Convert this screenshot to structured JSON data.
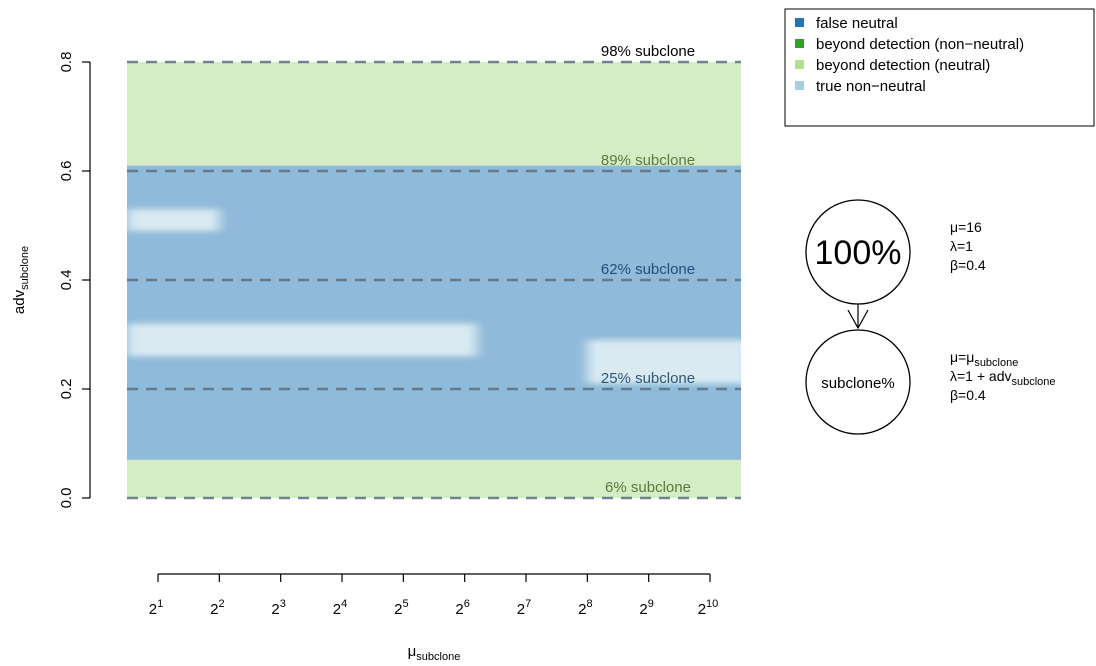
{
  "chart_data": {
    "type": "heatmap",
    "ylabel": {
      "base": "adv",
      "sub": "subclone"
    },
    "xlabel": {
      "base": "μ",
      "sub": "subclone"
    },
    "ylim": [
      0,
      0.8
    ],
    "xlim_log2": [
      1,
      10
    ],
    "y_ticks": [
      {
        "value": 0.0,
        "label": "0.0"
      },
      {
        "value": 0.2,
        "label": "0.2"
      },
      {
        "value": 0.4,
        "label": "0.4"
      },
      {
        "value": 0.6,
        "label": "0.6"
      },
      {
        "value": 0.8,
        "label": "0.8"
      }
    ],
    "x_ticks": [
      {
        "exp": 1,
        "base": "2",
        "sup": "1"
      },
      {
        "exp": 2,
        "base": "2",
        "sup": "2"
      },
      {
        "exp": 3,
        "base": "2",
        "sup": "3"
      },
      {
        "exp": 4,
        "base": "2",
        "sup": "4"
      },
      {
        "exp": 5,
        "base": "2",
        "sup": "5"
      },
      {
        "exp": 6,
        "base": "2",
        "sup": "6"
      },
      {
        "exp": 7,
        "base": "2",
        "sup": "7"
      },
      {
        "exp": 8,
        "base": "2",
        "sup": "8"
      },
      {
        "exp": 9,
        "base": "2",
        "sup": "9"
      },
      {
        "exp": 10,
        "base": "2",
        "sup": "10"
      }
    ],
    "regions": [
      {
        "class": "beyond-neutral",
        "y0": 0.0,
        "y1": 0.07,
        "color": "#d6ecc4"
      },
      {
        "class": "false-neutral",
        "y0": 0.07,
        "y1": 0.61,
        "color": "#8fbad9"
      },
      {
        "class": "beyond-neutral",
        "y0": 0.61,
        "y1": 0.8,
        "color": "#d6ecc4"
      }
    ],
    "true_nonneutral_patches": [
      {
        "x0_log2": 1.0,
        "x1_log2": 2.0,
        "y0": 0.49,
        "y1": 0.53
      },
      {
        "x0_log2": 1.0,
        "x1_log2": 6.2,
        "y0": 0.26,
        "y1": 0.32
      },
      {
        "x0_log2": 8.0,
        "x1_log2": 10.0,
        "y0": 0.21,
        "y1": 0.29
      }
    ],
    "subclone_lines": [
      {
        "y": 0.8,
        "label": "98% subclone",
        "color": "#000000"
      },
      {
        "y": 0.6,
        "label": "89% subclone",
        "color": "#5b7a3c"
      },
      {
        "y": 0.4,
        "label": "62% subclone",
        "color": "#1f4e79"
      },
      {
        "y": 0.2,
        "label": "25% subclone",
        "color": "#2e5878"
      },
      {
        "y": 0.0,
        "label": "6% subclone",
        "color": "#5b7a3c"
      }
    ],
    "legend": {
      "placement": "top-right",
      "entries": [
        {
          "label": "false neutral",
          "color": "#1f78b4"
        },
        {
          "label": "beyond detection (non−neutral)",
          "color": "#33a02c"
        },
        {
          "label": "beyond detection (neutral)",
          "color": "#b2df8a"
        },
        {
          "label": "true non−neutral",
          "color": "#a6cee3"
        }
      ]
    },
    "model": {
      "parent": {
        "label": "100%",
        "params": [
          "μ=16",
          "λ=1",
          "β=0.4"
        ]
      },
      "child": {
        "label": "subclone%",
        "params": [
          {
            "base": "μ=μ",
            "sub": "subclone"
          },
          {
            "base": "λ=1 + adv",
            "sub": "subclone"
          },
          {
            "base": "β=0.4"
          }
        ]
      }
    }
  }
}
